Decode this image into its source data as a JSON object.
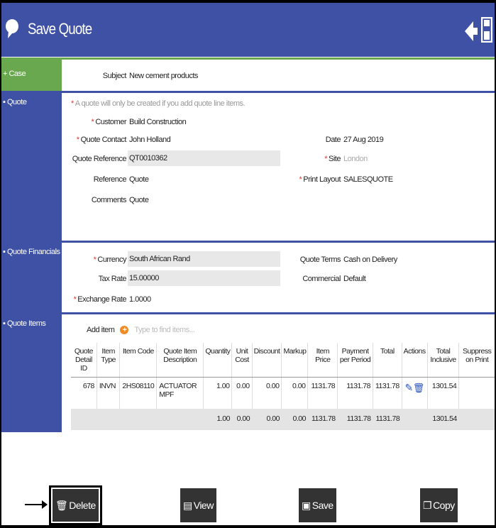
{
  "header": {
    "title": "Save Quote",
    "back_icon": "arrow-left-icon",
    "save_icon": "floppy-icon",
    "logo_icon": "chat-bubbles-icon"
  },
  "case": {
    "label": "+ Case",
    "subject_label": "Subject",
    "subject": "New cement products"
  },
  "quote": {
    "label": "Quote",
    "note": "A quote will only be created if you add quote line items.",
    "customer_label": "Customer",
    "customer": "Build Construction",
    "contact_label": "Quote Contact",
    "contact": "John Holland",
    "ref_label": "Quote Reference",
    "ref": "QT0010362",
    "reference_label": "Reference",
    "reference": "Quote",
    "comments_label": "Comments",
    "comments": "Quote",
    "date_label": "Date",
    "date": "27 Aug 2019",
    "site_label": "Site",
    "site": "London",
    "layout_label": "Print Layout",
    "layout": "SALESQUOTE"
  },
  "financials": {
    "label": "Quote Financials",
    "currency_label": "Currency",
    "currency": "South African Rand",
    "tax_label": "Tax Rate",
    "tax": "15.00000",
    "exch_label": "Exchange Rate",
    "exch": "1.0000",
    "terms_label": "Quote Terms",
    "terms": "Cash on Delivery",
    "commercial_label": "Commercial",
    "commercial": "Default"
  },
  "items": {
    "label": "Quote Items",
    "add_label": "Add item",
    "search_placeholder": "Type to find items...",
    "columns": [
      "Quote Detail ID",
      "Item Type",
      "Item Code",
      "Quote Item Description",
      "Quantity",
      "Unit Cost",
      "Discount",
      "Markup",
      "Item Price",
      "Payment per Period",
      "Total",
      "Actions",
      "Total Inclusive",
      "Suppress on Print"
    ],
    "row": [
      "678",
      "INVN",
      "2HS08110",
      "ACTUATOR MPF",
      "1.00",
      "0.00",
      "0.00",
      "0.00",
      "1131.78",
      "1131.78",
      "1131.78",
      "",
      "1301.54",
      ""
    ],
    "totals": [
      "",
      "",
      "",
      "",
      "1.00",
      "0.00",
      "0.00",
      "0.00",
      "1131.78",
      "1131.78",
      "1131.78",
      "",
      "1301.54",
      ""
    ]
  },
  "buttons": {
    "delete": "Delete",
    "view": "View",
    "save": "Save",
    "copy": "Copy"
  },
  "colors": {
    "header": "#3f51a5",
    "case": "#6aa84f",
    "button": "#333333"
  }
}
